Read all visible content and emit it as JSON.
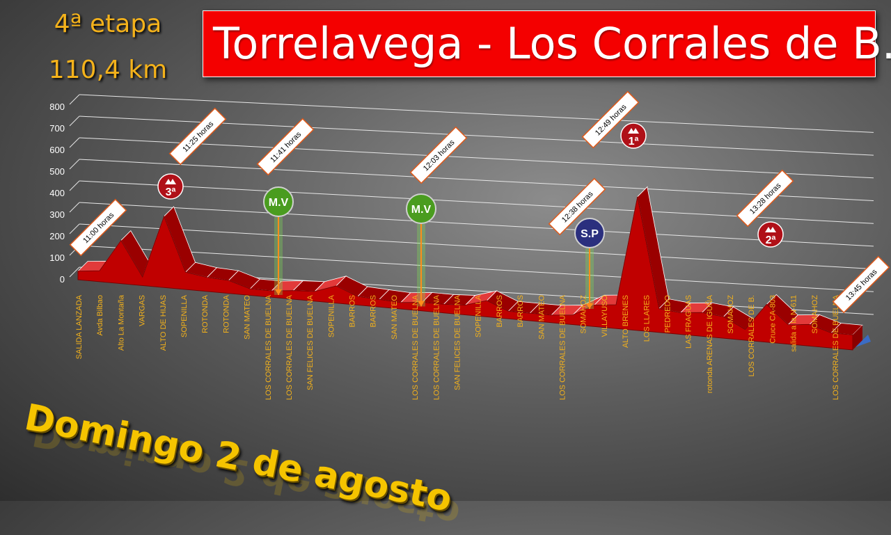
{
  "header": {
    "stage": "4ª etapa",
    "distance": "110,4 km",
    "route_title": "Torrelavega - Los Corrales de B.",
    "date": "Domingo 2 de agosto"
  },
  "colors": {
    "profile_red": "#c00000",
    "title_bg": "#f40000",
    "label_yellow": "#f4b21b",
    "mv_green": "#4a9c1f",
    "sp_blue": "#2b2f7e",
    "climb_red": "#b01018"
  },
  "chart_data": {
    "type": "area",
    "title": "Torrelavega - Los Corrales de B.",
    "ylabel": "",
    "xlabel": "",
    "ylim": [
      0,
      800
    ],
    "y_ticks": [
      0,
      100,
      200,
      300,
      400,
      500,
      600,
      700,
      800
    ],
    "grid": true,
    "x": [
      "SALIDA LANZADA",
      "Avda Bilbao",
      "Alto La Montaña",
      "VARGAS",
      "ALTO DE HIJAS",
      "SOPENILLA",
      "ROTONDA",
      "ROTONDA",
      "SAN MATEO",
      "LOS CORRALES DE BUELNA",
      "LOS CORRALES DE BUELNA",
      "SAN FELICES DE BUELNA",
      "SOPENILLA",
      "BARROS",
      "BARROS",
      "SAN MATEO",
      "LOS CORRALES DE BUELNA",
      "LOS CORRALES DE BUELNA",
      "SAN FELICES DE BUELNA",
      "SOPENILLA",
      "BARROS",
      "BARROS",
      "SAN MATEO",
      "LOS CORRALES DE BUELNA",
      "SOMAHOZ",
      "VILLAYUSO",
      "ALTO BRENES",
      "LOS LLARES",
      "PEDREDO",
      "LAS FRAGUAS",
      "rotonda ARENAS DE IGUÑA",
      "SOMAHOZ",
      "LOS CORRALES DE B.",
      "Cruce CA-803",
      "salida a la N-611",
      "SOMAHOZ",
      "LOS CORRALES DE BUELNA"
    ],
    "values": [
      40,
      50,
      200,
      40,
      330,
      80,
      65,
      60,
      30,
      30,
      40,
      45,
      80,
      40,
      35,
      30,
      40,
      40,
      45,
      75,
      35,
      35,
      35,
      45,
      100,
      110,
      620,
      110,
      100,
      110,
      100,
      50,
      175,
      90,
      100,
      70,
      70
    ],
    "series": [
      {
        "values": [
          40,
          50,
          200,
          40,
          330,
          80,
          65,
          60,
          30,
          30,
          40,
          45,
          80,
          40,
          35,
          30,
          40,
          40,
          45,
          75,
          35,
          35,
          35,
          45,
          100,
          110,
          620,
          110,
          100,
          110,
          100,
          50,
          175,
          90,
          100,
          70,
          70
        ]
      }
    ],
    "time_annotations": [
      {
        "index": 0,
        "label": "11:00 horas"
      },
      {
        "index": 4,
        "label": "11:25 horas"
      },
      {
        "index": 9,
        "label": "11:41 horas"
      },
      {
        "index": 16,
        "label": "12:03 horas"
      },
      {
        "index": 24,
        "label": "12:38 horas"
      },
      {
        "index": 26,
        "label": "12:49  horas"
      },
      {
        "index": 32,
        "label": "13:28 horas"
      },
      {
        "index": 36,
        "label": "13:45 horas"
      }
    ],
    "climb_badges": [
      {
        "index": 4,
        "label": "3ª"
      },
      {
        "index": 26,
        "label": "1ª"
      },
      {
        "index": 32,
        "label": "2ª"
      }
    ],
    "sprint_badges": [
      {
        "index": 9,
        "label": "M.V",
        "type": "mv"
      },
      {
        "index": 16,
        "label": "M.V",
        "type": "mv"
      },
      {
        "index": 25,
        "label": "S.P",
        "type": "sp"
      }
    ]
  }
}
